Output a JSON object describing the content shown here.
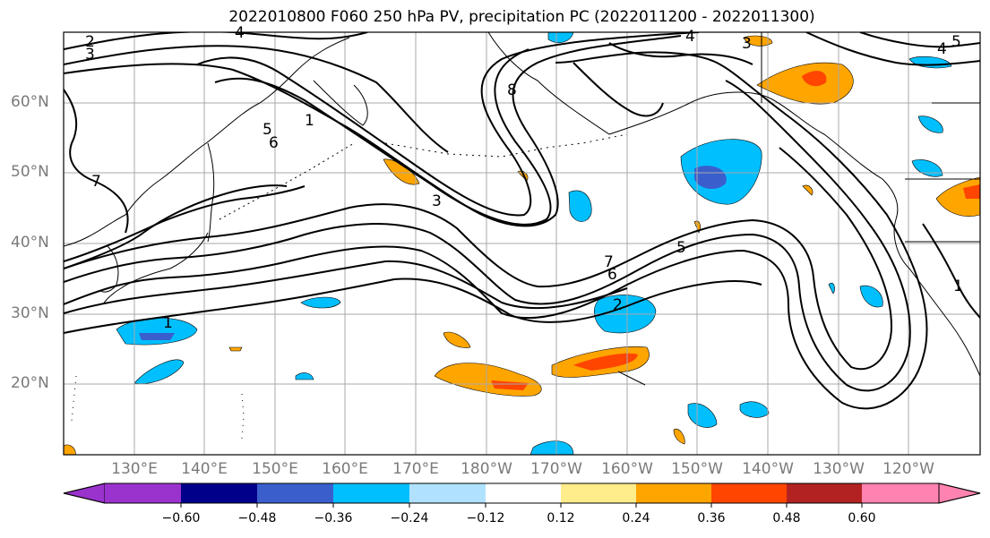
{
  "title": "2022010800 F060 250 hPa PV, precipitation PC (2022011200 - 2022011300)",
  "lat_labels": [
    "60°N",
    "50°N",
    "40°N",
    "30°N",
    "20°N"
  ],
  "lon_labels": [
    "130°E",
    "140°E",
    "150°E",
    "160°E",
    "170°E",
    "180°W",
    "170°W",
    "160°W",
    "150°W",
    "140°W",
    "130°W",
    "120°W"
  ],
  "pv_contour_labels": [
    "2",
    "3",
    "4",
    "5",
    "6",
    "7",
    "1",
    "8"
  ],
  "colorbar": {
    "ticks": [
      "−0.60",
      "−0.48",
      "−0.36",
      "−0.24",
      "−0.12",
      "0.12",
      "0.24",
      "0.36",
      "0.48",
      "0.60"
    ],
    "colors": [
      "#9a32cd",
      "#00008b",
      "#3a5fcd",
      "#00bfff",
      "#b0e2ff",
      "#ffffff",
      "#ffec8b",
      "#ffa500",
      "#ff4500",
      "#b22222",
      "#ff83b0"
    ]
  }
}
